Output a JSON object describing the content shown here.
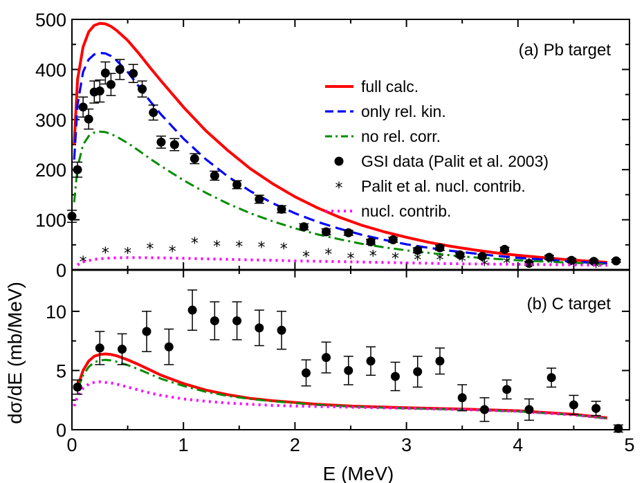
{
  "chart_data": {
    "type": "line",
    "xlabel": "E (MeV)",
    "ylabel": "dσ/dE (mb/MeV)",
    "xlim": [
      0,
      5
    ],
    "xticks": [
      "0",
      "1",
      "2",
      "3",
      "4",
      "5"
    ],
    "colors": {
      "full": "#ff0000",
      "rel": "#0000ff",
      "norel": "#008c00",
      "data": "#000000",
      "palit": "#000000",
      "nucl": "#ff00ff"
    },
    "panels": [
      {
        "label": "(a) Pb target",
        "ylim": [
          0,
          500
        ],
        "yticks": [
          "0",
          "100",
          "200",
          "300",
          "400",
          "500"
        ],
        "legend_position": "top-right",
        "series": [
          {
            "key": "full",
            "name": "full calc.",
            "style": "solid",
            "x": [
              0.02,
              0.05,
              0.1,
              0.15,
              0.2,
              0.25,
              0.3,
              0.35,
              0.4,
              0.5,
              0.6,
              0.7,
              0.8,
              1.0,
              1.2,
              1.4,
              1.6,
              1.8,
              2.0,
              2.2,
              2.4,
              2.6,
              2.8,
              3.0,
              3.2,
              3.4,
              3.6,
              3.8,
              4.0,
              4.2,
              4.4,
              4.6,
              4.8
            ],
            "y": [
              250,
              380,
              445,
              475,
              488,
              492,
              491,
              486,
              478,
              458,
              432,
              404,
              377,
              325,
              278,
              238,
              202,
              172,
              146,
              124,
              105,
              89,
              76,
              65,
              55,
              47,
              40,
              34,
              29,
              25,
              21,
              18,
              15
            ]
          },
          {
            "key": "rel",
            "name": "only rel. kin.",
            "style": "dashed",
            "x": [
              0.02,
              0.05,
              0.1,
              0.15,
              0.2,
              0.25,
              0.3,
              0.35,
              0.4,
              0.5,
              0.6,
              0.7,
              0.8,
              1.0,
              1.2,
              1.4,
              1.6,
              1.8,
              2.0,
              2.2,
              2.4,
              2.6,
              2.8,
              3.0,
              3.2,
              3.4,
              3.6,
              3.8,
              4.0,
              4.2,
              4.4,
              4.6,
              4.8
            ],
            "y": [
              220,
              330,
              395,
              420,
              430,
              433,
              432,
              427,
              418,
              395,
              366,
              337,
              310,
              262,
              221,
              186,
              157,
              133,
              113,
              96,
              82,
              70,
              60,
              51,
              44,
              38,
              33,
              28,
              24,
              21,
              18,
              15,
              13
            ]
          },
          {
            "key": "norel",
            "name": "no rel. corr.",
            "style": "dashdot",
            "x": [
              0.02,
              0.05,
              0.1,
              0.15,
              0.2,
              0.25,
              0.3,
              0.35,
              0.4,
              0.5,
              0.6,
              0.7,
              0.8,
              1.0,
              1.2,
              1.4,
              1.6,
              1.8,
              2.0,
              2.2,
              2.4,
              2.6,
              2.8,
              3.0,
              3.2,
              3.4,
              3.6,
              3.8,
              4.0,
              4.2,
              4.4,
              4.6,
              4.8
            ],
            "y": [
              135,
              205,
              250,
              267,
              274,
              276,
              275,
              271,
              266,
              253,
              238,
              222,
              207,
              179,
              154,
              132,
              113,
              97,
              83,
              71,
              61,
              52,
              45,
              39,
              34,
              29,
              25,
              22,
              19,
              17,
              15,
              13,
              11
            ]
          },
          {
            "key": "data",
            "name": "GSI data (Palit et al. 2003)",
            "style": "markers",
            "x": [
              0.0,
              0.05,
              0.1,
              0.15,
              0.2,
              0.25,
              0.3,
              0.35,
              0.43,
              0.55,
              0.63,
              0.73,
              0.8,
              0.92,
              1.1,
              1.28,
              1.48,
              1.68,
              1.88,
              2.08,
              2.28,
              2.48,
              2.68,
              2.88,
              3.1,
              3.3,
              3.48,
              3.68,
              3.88,
              4.1,
              4.28,
              4.48,
              4.68,
              4.88
            ],
            "y": [
              107,
              200,
              325,
              301,
              355,
              357,
              393,
              370,
              400,
              392,
              361,
              314,
              255,
              250,
              222,
              188,
              170,
              141,
              121,
              86,
              76,
              74,
              56,
              60,
              39,
              44,
              30,
              27,
              41,
              13,
              25,
              19,
              17,
              18
            ],
            "err": [
              12,
              15,
              20,
              20,
              22,
              22,
              22,
              22,
              20,
              18,
              16,
              15,
              12,
              12,
              10,
              9,
              8,
              8,
              7,
              6,
              6,
              5,
              5,
              5,
              5,
              5,
              4,
              4,
              4,
              4,
              4,
              4,
              3,
              3
            ]
          },
          {
            "key": "palit",
            "name": "Palit et al. nucl. contrib.",
            "style": "stars",
            "x": [
              0.1,
              0.3,
              0.5,
              0.7,
              0.9,
              1.1,
              1.3,
              1.5,
              1.7,
              1.9,
              2.1,
              2.3,
              2.5,
              2.7,
              2.9,
              3.1,
              3.3,
              3.5,
              3.7,
              3.9,
              4.1,
              4.3,
              4.5,
              4.7
            ],
            "y": [
              18,
              36,
              35,
              44,
              39,
              55,
              49,
              48,
              47,
              44,
              28,
              33,
              25,
              30,
              25,
              22,
              22,
              19,
              11,
              15,
              13,
              17,
              10,
              7
            ]
          },
          {
            "key": "nucl",
            "name": "nucl. contrib.",
            "style": "dotted",
            "x": [
              0.05,
              0.1,
              0.2,
              0.3,
              0.4,
              0.5,
              0.6,
              0.8,
              1.0,
              1.2,
              1.4,
              1.6,
              1.8,
              2.0,
              2.5,
              3.0,
              3.5,
              4.0,
              4.5,
              4.8
            ],
            "y": [
              10,
              16,
              21,
              23,
              24,
              24.5,
              24.5,
              24,
              23,
              22,
              21,
              20,
              19,
              18,
              16,
              14,
              12,
              11,
              10,
              9
            ]
          }
        ]
      },
      {
        "label": "(b) C target",
        "ylim": [
          0,
          13.5
        ],
        "yticks": [
          "0",
          "5",
          "10"
        ],
        "series": [
          {
            "key": "rel",
            "name": "only rel. kin.",
            "style": "dashed",
            "x": [
              0.05,
              0.1,
              0.15,
              0.2,
              0.25,
              0.3,
              0.35,
              0.4,
              0.5,
              0.6,
              0.7,
              0.8,
              1.0,
              1.2,
              1.4,
              1.6,
              1.8,
              2.0,
              2.2,
              2.5,
              3.0,
              3.5,
              4.0,
              4.5,
              4.8
            ],
            "y": [
              3.6,
              5.0,
              5.8,
              6.2,
              6.35,
              6.4,
              6.35,
              6.25,
              5.9,
              5.5,
              5.05,
              4.6,
              3.9,
              3.35,
              2.95,
              2.65,
              2.45,
              2.3,
              2.15,
              2.0,
              1.85,
              1.75,
              1.6,
              1.3,
              1.0
            ]
          },
          {
            "key": "full",
            "name": "full calc.",
            "style": "solid",
            "x": [
              0.05,
              0.1,
              0.15,
              0.2,
              0.25,
              0.3,
              0.35,
              0.4,
              0.5,
              0.6,
              0.7,
              0.8,
              1.0,
              1.2,
              1.4,
              1.6,
              1.8,
              2.0,
              2.2,
              2.5,
              3.0,
              3.5,
              4.0,
              4.5,
              4.8
            ],
            "y": [
              3.6,
              5.0,
              5.8,
              6.2,
              6.35,
              6.4,
              6.35,
              6.25,
              5.9,
              5.5,
              5.05,
              4.6,
              3.9,
              3.35,
              2.95,
              2.65,
              2.45,
              2.3,
              2.15,
              2.0,
              1.85,
              1.75,
              1.6,
              1.3,
              1.0
            ]
          },
          {
            "key": "norel",
            "name": "no rel. corr.",
            "style": "dashdot",
            "x": [
              0.05,
              0.1,
              0.15,
              0.2,
              0.25,
              0.3,
              0.35,
              0.4,
              0.5,
              0.6,
              0.7,
              0.8,
              1.0,
              1.2,
              1.4,
              1.6,
              1.8,
              2.0,
              2.2,
              2.5,
              3.0,
              3.5,
              4.0,
              4.5,
              4.8
            ],
            "y": [
              3.4,
              4.6,
              5.3,
              5.7,
              5.85,
              5.9,
              5.85,
              5.75,
              5.45,
              5.1,
              4.7,
              4.3,
              3.7,
              3.2,
              2.85,
              2.6,
              2.4,
              2.25,
              2.1,
              1.95,
              1.8,
              1.7,
              1.55,
              1.25,
              0.95
            ]
          },
          {
            "key": "nucl",
            "name": "nucl. contrib.",
            "style": "dotted",
            "x": [
              0.02,
              0.05,
              0.1,
              0.15,
              0.2,
              0.25,
              0.3,
              0.35,
              0.4,
              0.5,
              0.6,
              0.7,
              0.8,
              1.0,
              1.2,
              1.4,
              1.6,
              1.8,
              2.0,
              2.5,
              3.0,
              3.5,
              4.0,
              4.5,
              4.8
            ],
            "y": [
              2.0,
              2.8,
              3.5,
              3.85,
              4.0,
              4.05,
              4.0,
              3.95,
              3.85,
              3.6,
              3.35,
              3.1,
              2.9,
              2.6,
              2.4,
              2.25,
              2.15,
              2.05,
              2.0,
              1.9,
              1.8,
              1.7,
              1.55,
              1.25,
              0.95
            ]
          },
          {
            "key": "data",
            "name": "GSI data (Palit et al. 2003)",
            "style": "markers",
            "x": [
              0.05,
              0.25,
              0.45,
              0.67,
              0.87,
              1.08,
              1.28,
              1.48,
              1.68,
              1.88,
              2.1,
              2.28,
              2.48,
              2.68,
              2.9,
              3.1,
              3.3,
              3.5,
              3.7,
              3.9,
              4.1,
              4.3,
              4.5,
              4.7,
              4.9
            ],
            "y": [
              3.6,
              6.9,
              6.8,
              8.3,
              7.0,
              10.1,
              9.2,
              9.2,
              8.6,
              8.4,
              4.8,
              6.1,
              5.0,
              5.8,
              4.5,
              4.9,
              5.8,
              2.7,
              1.7,
              3.4,
              1.7,
              4.4,
              2.1,
              1.8,
              0.1
            ],
            "err": [
              0.6,
              1.4,
              1.3,
              1.7,
              1.5,
              1.7,
              1.6,
              1.6,
              1.5,
              1.6,
              1.1,
              1.3,
              1.2,
              1.2,
              1.2,
              1.3,
              1.1,
              1.1,
              1.0,
              0.8,
              0.9,
              0.8,
              0.8,
              0.6,
              0.3
            ]
          }
        ]
      }
    ]
  }
}
